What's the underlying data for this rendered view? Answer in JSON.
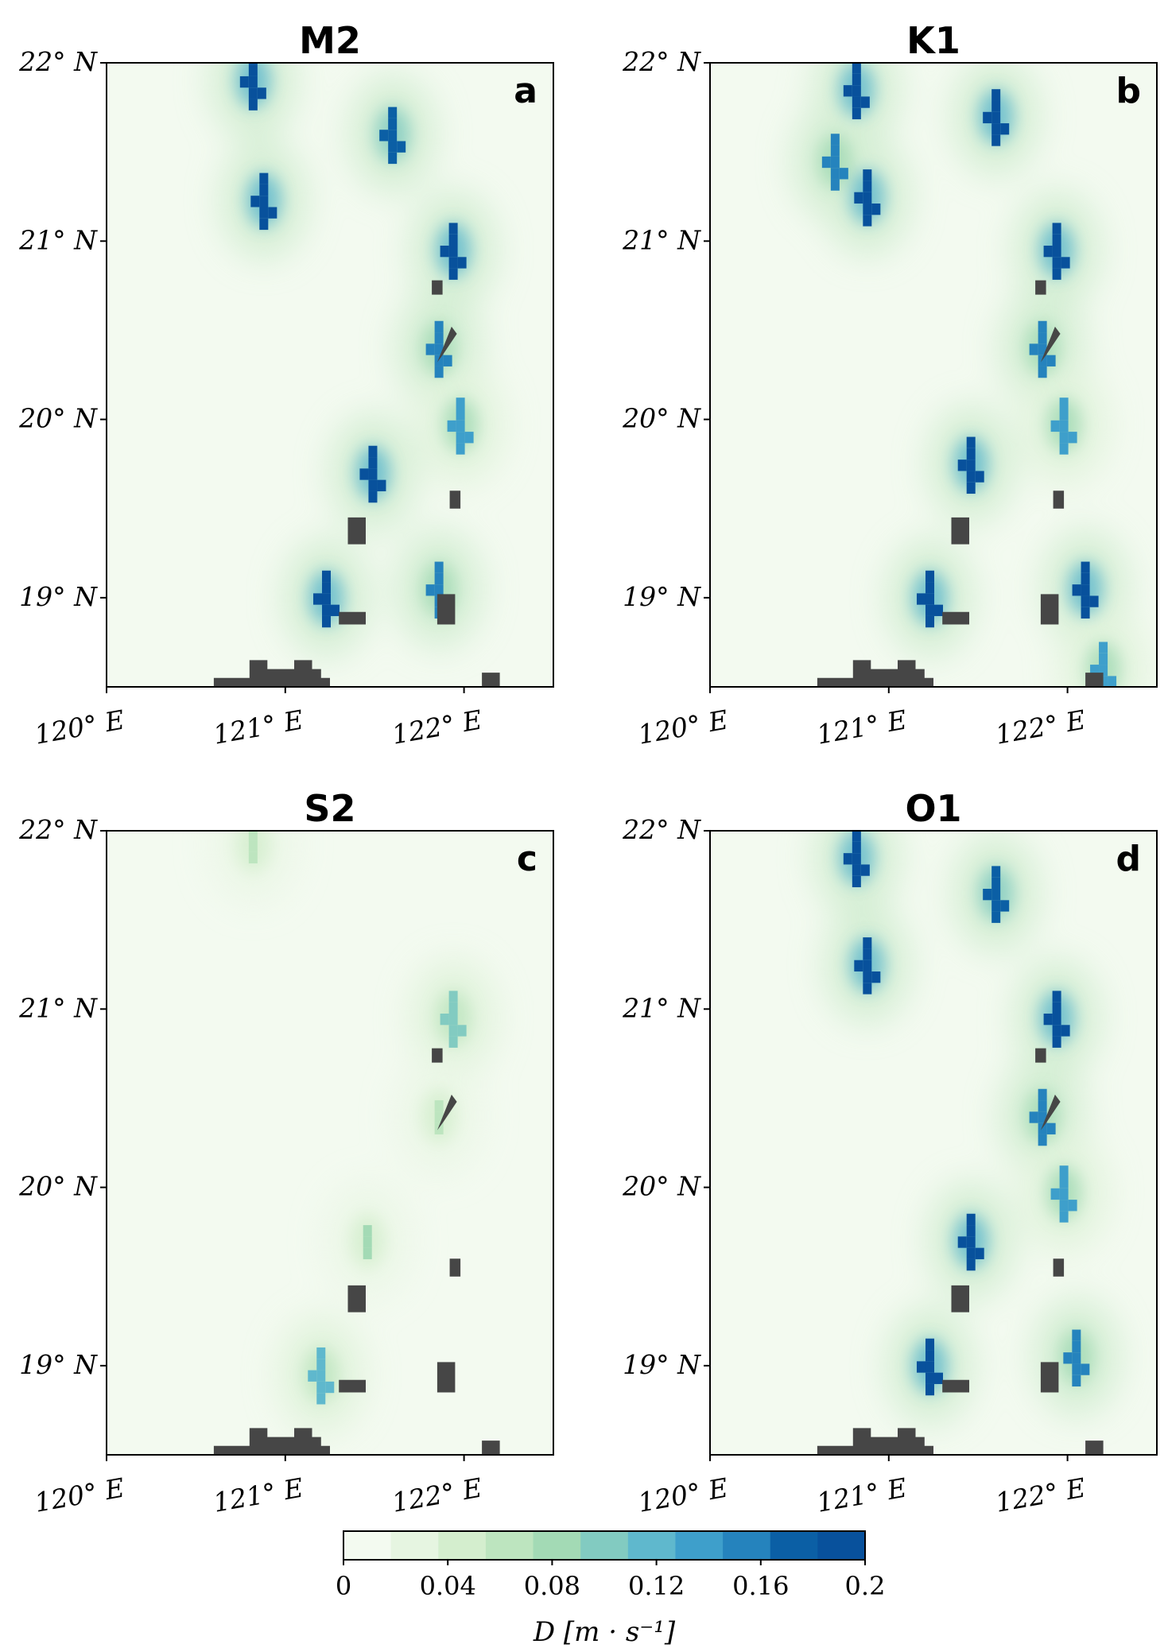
{
  "figure": {
    "colorbar": {
      "ticks": [
        "0",
        "0.04",
        "0.08",
        "0.12",
        "0.16",
        "0.2"
      ],
      "tick_values": [
        0,
        0.04,
        0.08,
        0.12,
        0.16,
        0.2
      ],
      "label": "D [m · s⁻¹]",
      "range": [
        0,
        0.2
      ],
      "colors": [
        "#f3faf0",
        "#e6f5e1",
        "#d4eece",
        "#bde5bf",
        "#a3dab5",
        "#82cbc1",
        "#5fb8cd",
        "#3e9fcb",
        "#2583bd",
        "#0b5fa5",
        "#08519c"
      ]
    },
    "land_color": "#464646"
  },
  "chart_data": [
    {
      "type": "heatmap",
      "title": "M2",
      "panel_letter": "a",
      "x_ticks": [
        "120° E",
        "121° E",
        "122° E"
      ],
      "y_ticks": [
        "22° N",
        "21° N",
        "20° N",
        "19° N"
      ],
      "x_tick_values": [
        120,
        121,
        122
      ],
      "y_tick_values": [
        22,
        21,
        20,
        19
      ],
      "xlim": [
        120,
        122.5
      ],
      "ylim": [
        18.5,
        22
      ],
      "hotspots": [
        {
          "lon": 120.82,
          "lat": 21.9,
          "value": 0.2
        },
        {
          "lon": 121.6,
          "lat": 21.6,
          "value": 0.18
        },
        {
          "lon": 120.88,
          "lat": 21.23,
          "value": 0.2
        },
        {
          "lon": 121.94,
          "lat": 20.95,
          "value": 0.2
        },
        {
          "lon": 121.86,
          "lat": 20.4,
          "value": 0.16
        },
        {
          "lon": 121.49,
          "lat": 19.7,
          "value": 0.2
        },
        {
          "lon": 121.98,
          "lat": 19.97,
          "value": 0.14
        },
        {
          "lon": 121.23,
          "lat": 19.0,
          "value": 0.2
        },
        {
          "lon": 121.86,
          "lat": 19.05,
          "value": 0.16
        }
      ]
    },
    {
      "type": "heatmap",
      "title": "K1",
      "panel_letter": "b",
      "x_ticks": [
        "120° E",
        "121° E",
        "122° E"
      ],
      "y_ticks": [
        "22° N",
        "21° N",
        "20° N",
        "19° N"
      ],
      "x_tick_values": [
        120,
        121,
        122
      ],
      "y_tick_values": [
        22,
        21,
        20,
        19
      ],
      "xlim": [
        120,
        122.5
      ],
      "ylim": [
        18.5,
        22
      ],
      "hotspots": [
        {
          "lon": 120.82,
          "lat": 21.85,
          "value": 0.2
        },
        {
          "lon": 121.6,
          "lat": 21.7,
          "value": 0.2
        },
        {
          "lon": 120.88,
          "lat": 21.25,
          "value": 0.2
        },
        {
          "lon": 120.7,
          "lat": 21.45,
          "value": 0.16
        },
        {
          "lon": 121.94,
          "lat": 20.95,
          "value": 0.2
        },
        {
          "lon": 121.86,
          "lat": 20.4,
          "value": 0.16
        },
        {
          "lon": 121.46,
          "lat": 19.75,
          "value": 0.2
        },
        {
          "lon": 121.98,
          "lat": 19.97,
          "value": 0.14
        },
        {
          "lon": 121.23,
          "lat": 19.0,
          "value": 0.2
        },
        {
          "lon": 122.1,
          "lat": 19.05,
          "value": 0.2
        },
        {
          "lon": 122.2,
          "lat": 18.6,
          "value": 0.14
        }
      ]
    },
    {
      "type": "heatmap",
      "title": "S2",
      "panel_letter": "c",
      "x_ticks": [
        "120° E",
        "121° E",
        "122° E"
      ],
      "y_ticks": [
        "22° N",
        "21° N",
        "20° N",
        "19° N"
      ],
      "x_tick_values": [
        120,
        121,
        122
      ],
      "y_tick_values": [
        22,
        21,
        20,
        19
      ],
      "xlim": [
        120,
        122.5
      ],
      "ylim": [
        18.5,
        22
      ],
      "hotspots": [
        {
          "lon": 120.82,
          "lat": 21.92,
          "value": 0.06
        },
        {
          "lon": 121.94,
          "lat": 20.95,
          "value": 0.1
        },
        {
          "lon": 121.86,
          "lat": 20.4,
          "value": 0.06
        },
        {
          "lon": 121.46,
          "lat": 19.7,
          "value": 0.08
        },
        {
          "lon": 121.2,
          "lat": 18.95,
          "value": 0.12
        }
      ]
    },
    {
      "type": "heatmap",
      "title": "O1",
      "panel_letter": "d",
      "x_ticks": [
        "120° E",
        "121° E",
        "122° E"
      ],
      "y_ticks": [
        "22° N",
        "21° N",
        "20° N",
        "19° N"
      ],
      "x_tick_values": [
        120,
        121,
        122
      ],
      "y_tick_values": [
        22,
        21,
        20,
        19
      ],
      "xlim": [
        120,
        122.5
      ],
      "ylim": [
        18.5,
        22
      ],
      "hotspots": [
        {
          "lon": 120.82,
          "lat": 21.85,
          "value": 0.2
        },
        {
          "lon": 121.6,
          "lat": 21.65,
          "value": 0.18
        },
        {
          "lon": 120.88,
          "lat": 21.25,
          "value": 0.2
        },
        {
          "lon": 121.94,
          "lat": 20.95,
          "value": 0.2
        },
        {
          "lon": 121.86,
          "lat": 20.4,
          "value": 0.16
        },
        {
          "lon": 121.46,
          "lat": 19.7,
          "value": 0.2
        },
        {
          "lon": 121.98,
          "lat": 19.97,
          "value": 0.14
        },
        {
          "lon": 121.23,
          "lat": 19.0,
          "value": 0.2
        },
        {
          "lon": 122.05,
          "lat": 19.05,
          "value": 0.16
        }
      ]
    }
  ]
}
